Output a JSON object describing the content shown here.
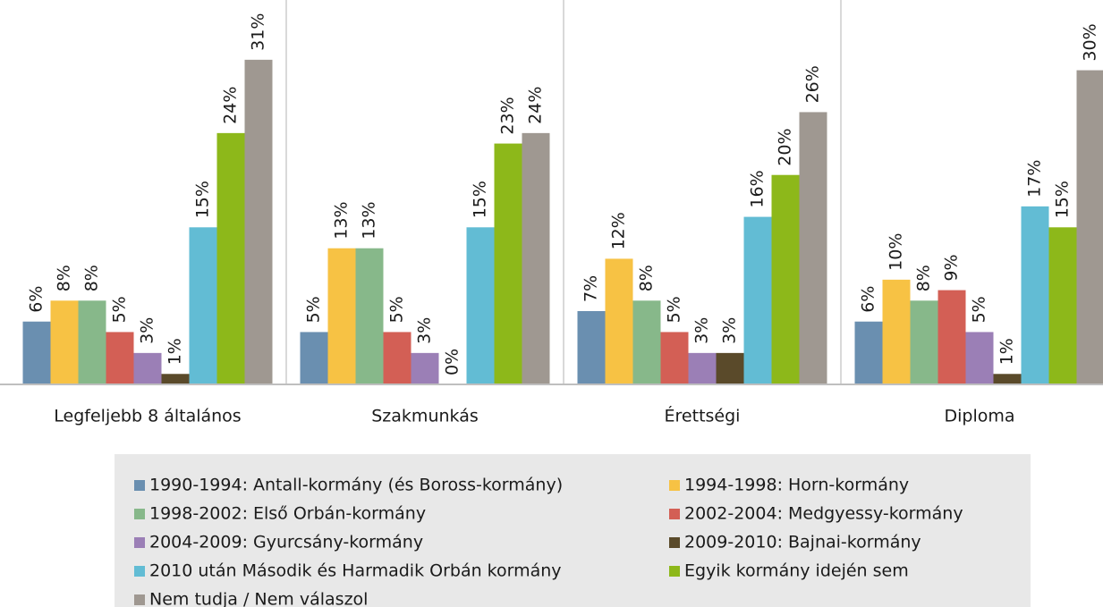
{
  "chart_data": {
    "type": "bar",
    "categories": [
      "Legfeljebb 8 általános",
      "Szakmunkás",
      "Érettségi",
      "Diploma"
    ],
    "ylim": [
      0,
      35
    ],
    "series": [
      {
        "name": "1990-1994: Antall-kormány (és Boross-kormány)",
        "color": "#6a8fb0",
        "values": [
          6,
          5,
          7,
          6
        ],
        "value_labels": [
          "6%",
          "5%",
          "7%",
          "6%"
        ]
      },
      {
        "name": "1994-1998: Horn-kormány",
        "color": "#f7c244",
        "values": [
          8,
          13,
          12,
          10
        ],
        "value_labels": [
          "8%",
          "13%",
          "12%",
          "10%"
        ]
      },
      {
        "name": "1998-2002: Első Orbán-kormány",
        "color": "#87b88a",
        "values": [
          8,
          13,
          8,
          8
        ],
        "value_labels": [
          "8%",
          "13%",
          "8%",
          "8%"
        ]
      },
      {
        "name": "2002-2004: Medgyessy-kormány",
        "color": "#d35f55",
        "values": [
          5,
          5,
          5,
          9
        ],
        "value_labels": [
          "5%",
          "5%",
          "5%",
          "9%"
        ]
      },
      {
        "name": "2004-2009: Gyurcsány-kormány",
        "color": "#9b7fb6",
        "values": [
          3,
          3,
          3,
          5
        ],
        "value_labels": [
          "3%",
          "3%",
          "3%",
          "5%"
        ]
      },
      {
        "name": "2009-2010: Bajnai-kormány",
        "color": "#5a4a2a",
        "values": [
          1,
          0,
          3,
          1
        ],
        "value_labels": [
          "1%",
          "0%",
          "3%",
          "1%"
        ]
      },
      {
        "name": "2010 után Második és Harmadik Orbán kormány",
        "color": "#62bcd4",
        "values": [
          15,
          15,
          16,
          17
        ],
        "value_labels": [
          "15%",
          "15%",
          "16%",
          "17%"
        ]
      },
      {
        "name": "Egyik kormány idején sem",
        "color": "#8db81a",
        "values": [
          24,
          23,
          20,
          15
        ],
        "value_labels": [
          "24%",
          "23%",
          "20%",
          "15%"
        ]
      },
      {
        "name": "Nem tudja / Nem válaszol",
        "color": "#9f9891",
        "values": [
          31,
          24,
          26,
          30
        ],
        "value_labels": [
          "31%",
          "24%",
          "26%",
          "30%"
        ]
      }
    ]
  }
}
